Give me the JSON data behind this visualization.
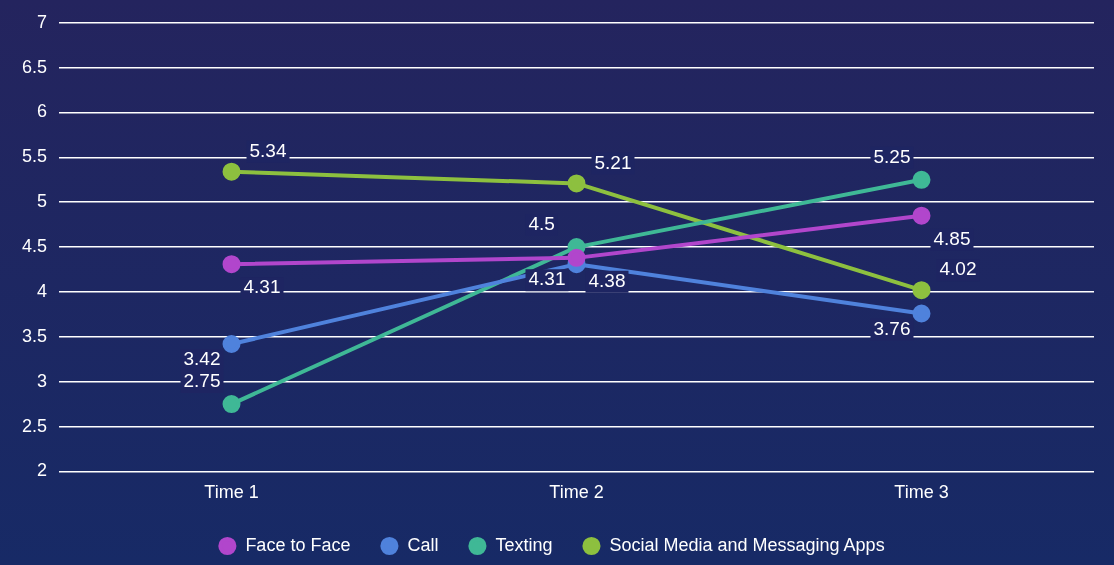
{
  "chart_data": {
    "type": "line",
    "categories": [
      "Time 1",
      "Time 2",
      "Time 3"
    ],
    "series": [
      {
        "name": "Face to Face",
        "color": "#b146cc",
        "values": [
          4.31,
          4.38,
          4.85
        ]
      },
      {
        "name": "Call",
        "color": "#4f82dc",
        "values": [
          3.42,
          4.31,
          3.76
        ]
      },
      {
        "name": "Texting",
        "color": "#3fb896",
        "values": [
          2.75,
          4.5,
          5.25
        ]
      },
      {
        "name": "Social Media and Messaging Apps",
        "color": "#8dc03f",
        "values": [
          5.34,
          5.21,
          4.02
        ]
      }
    ],
    "ylim": [
      2,
      7
    ],
    "yticks": [
      2,
      2.5,
      3,
      3.5,
      4,
      4.5,
      5,
      5.5,
      6,
      6.5,
      7
    ],
    "grid": "y",
    "legend": "bottom",
    "marker": "circle",
    "line_style": "solid",
    "data_labels": true
  }
}
